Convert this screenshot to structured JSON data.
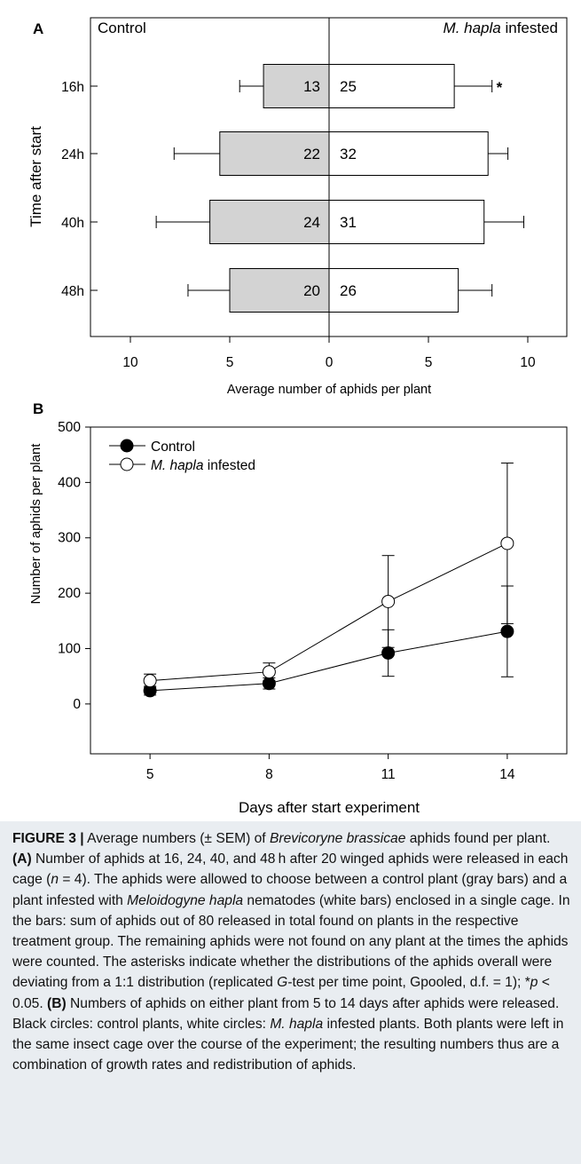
{
  "panel_a": {
    "label": "A",
    "left_header": "Control",
    "right_header_italic": "M. hapla",
    "right_header_rest": " infested",
    "ylabel": "Time after start",
    "xlabel": "Average number of aphids per plant",
    "x_tick_labels": [
      "10",
      "5",
      "0",
      "5",
      "10"
    ],
    "star": "*"
  },
  "panel_b": {
    "label": "B",
    "ylabel": "Number of aphids per plant",
    "xlabel": "Days after start experiment",
    "legend_control": "Control",
    "legend_infested_italic": "M. hapla",
    "legend_infested_rest": " infested",
    "y_tick_labels": [
      "0",
      "100",
      "200",
      "300",
      "400",
      "500"
    ],
    "x_tick_labels": [
      "5",
      "8",
      "11",
      "14"
    ]
  },
  "chart_data": [
    {
      "type": "bar",
      "orientation": "horizontal-back-to-back",
      "categories": [
        "16h",
        "24h",
        "40h",
        "48h"
      ],
      "series": [
        {
          "name": "Control",
          "color": "#d3d3d3",
          "values": [
            3.3,
            5.5,
            6.0,
            5.0
          ],
          "errors": [
            1.2,
            2.3,
            2.7,
            2.1
          ],
          "labels": [
            "13",
            "22",
            "24",
            "20"
          ]
        },
        {
          "name": "M. hapla infested",
          "color": "#ffffff",
          "values": [
            6.3,
            8.0,
            7.8,
            6.5
          ],
          "errors": [
            1.9,
            1.0,
            2.0,
            1.7
          ],
          "labels": [
            "25",
            "32",
            "31",
            "26"
          ]
        }
      ],
      "significance": [
        "*",
        "",
        "",
        ""
      ],
      "xlim": [
        -10,
        10
      ],
      "xlabel": "Average number of aphids per plant",
      "ylabel": "Time after start"
    },
    {
      "type": "line",
      "x": [
        5,
        8,
        11,
        14
      ],
      "series": [
        {
          "name": "Control",
          "marker": "filled-circle",
          "values": [
            24,
            37,
            92,
            131
          ],
          "errors": [
            8,
            10,
            42,
            82
          ]
        },
        {
          "name": "M. hapla infested",
          "marker": "open-circle",
          "values": [
            42,
            58,
            185,
            290
          ],
          "errors": [
            12,
            16,
            83,
            145
          ]
        }
      ],
      "ylim": [
        -90,
        500
      ],
      "xlabel": "Days after start experiment",
      "ylabel": "Number of aphids per plant",
      "legend": "top-left"
    }
  ],
  "caption": {
    "lead": "FIGURE 3 |",
    "text": " Average numbers (± SEM) of ",
    "species": "Brevicoryne brassicae",
    "text2": " aphids found per plant. ",
    "a_label": "(A)",
    "a_text": " Number of aphids at 16, 24, 40, and 48 h after 20 winged aphids were released in each cage (",
    "n_italic": "n",
    "a_text2": " = 4). The aphids were allowed to choose between a control plant (gray bars) and a plant infested with ",
    "nematode": "Meloidogyne hapla",
    "a_text3": " nematodes (white bars) enclosed in a single cage. In the bars: sum of aphids out of 80 released in total found on plants in the respective treatment group. The remaining aphids were not found on any plant at the times the aphids were counted. The asterisks indicate whether the distributions of the aphids overall were deviating from a 1:1 distribution (replicated ",
    "g_italic": "G",
    "a_text4": "-test per time point, Gpooled, d.f. = 1); *",
    "p_italic": "p",
    "a_text5": " < 0.05. ",
    "b_label": "(B)",
    "b_text": " Numbers of aphids on either plant from 5 to 14 days after aphids were released. Black circles: control plants, white circles: ",
    "mh_italic": "M. hapla",
    "b_text2": " infested plants. Both plants were left in the same insect cage over the course of the experiment; the resulting numbers thus are a combination of growth rates and redistribution of aphids."
  }
}
